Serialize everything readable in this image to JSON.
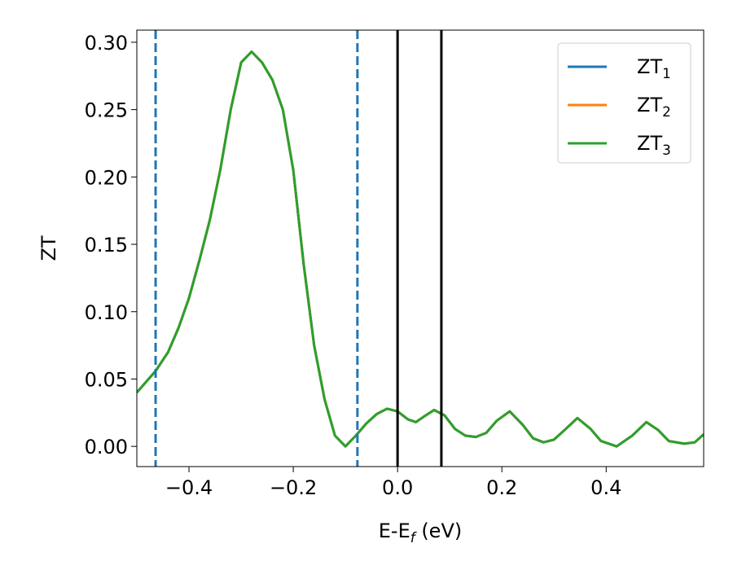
{
  "chart_data": {
    "type": "line",
    "xlabel": "E-Ef (eV)",
    "ylabel": "ZT",
    "x": [
      -0.5,
      -0.464,
      -0.44,
      -0.42,
      -0.4,
      -0.38,
      -0.36,
      -0.34,
      -0.32,
      -0.3,
      -0.28,
      -0.26,
      -0.24,
      -0.22,
      -0.2,
      -0.18,
      -0.16,
      -0.14,
      -0.12,
      -0.1,
      -0.08,
      -0.06,
      -0.04,
      -0.02,
      0.0,
      0.02,
      0.035,
      0.05,
      0.07,
      0.09,
      0.11,
      0.13,
      0.15,
      0.17,
      0.19,
      0.215,
      0.24,
      0.26,
      0.28,
      0.3,
      0.32,
      0.345,
      0.37,
      0.39,
      0.42,
      0.45,
      0.477,
      0.5,
      0.52,
      0.55,
      0.57,
      0.587
    ],
    "series": [
      {
        "name": "ZT1",
        "color": "#1f77b4",
        "values": [
          0.04,
          0.056,
          0.07,
          0.088,
          0.11,
          0.138,
          0.168,
          0.205,
          0.25,
          0.285,
          0.293,
          0.285,
          0.272,
          0.25,
          0.205,
          0.135,
          0.075,
          0.035,
          0.008,
          0.0,
          0.008,
          0.017,
          0.024,
          0.028,
          0.026,
          0.02,
          0.018,
          0.022,
          0.027,
          0.023,
          0.013,
          0.008,
          0.007,
          0.01,
          0.019,
          0.026,
          0.016,
          0.006,
          0.003,
          0.005,
          0.012,
          0.021,
          0.013,
          0.004,
          0.0,
          0.008,
          0.018,
          0.012,
          0.004,
          0.002,
          0.003,
          0.009
        ]
      },
      {
        "name": "ZT2",
        "color": "#ff7f0e",
        "values": [
          0.04,
          0.056,
          0.07,
          0.088,
          0.11,
          0.138,
          0.168,
          0.205,
          0.25,
          0.285,
          0.293,
          0.285,
          0.272,
          0.25,
          0.205,
          0.135,
          0.075,
          0.035,
          0.008,
          0.0,
          0.008,
          0.017,
          0.024,
          0.028,
          0.026,
          0.02,
          0.018,
          0.022,
          0.027,
          0.023,
          0.013,
          0.008,
          0.007,
          0.01,
          0.019,
          0.026,
          0.016,
          0.006,
          0.003,
          0.005,
          0.012,
          0.021,
          0.013,
          0.004,
          0.0,
          0.008,
          0.018,
          0.012,
          0.004,
          0.002,
          0.003,
          0.009
        ]
      },
      {
        "name": "ZT3",
        "color": "#2ca02c",
        "values": [
          0.04,
          0.056,
          0.07,
          0.088,
          0.11,
          0.138,
          0.168,
          0.205,
          0.25,
          0.285,
          0.293,
          0.285,
          0.272,
          0.25,
          0.205,
          0.135,
          0.075,
          0.035,
          0.008,
          0.0,
          0.008,
          0.017,
          0.024,
          0.028,
          0.026,
          0.02,
          0.018,
          0.022,
          0.027,
          0.023,
          0.013,
          0.008,
          0.007,
          0.01,
          0.019,
          0.026,
          0.016,
          0.006,
          0.003,
          0.005,
          0.012,
          0.021,
          0.013,
          0.004,
          0.0,
          0.008,
          0.018,
          0.012,
          0.004,
          0.002,
          0.003,
          0.009
        ]
      }
    ],
    "vlines": [
      {
        "x": -0.464,
        "color": "#1f77b4",
        "dashed": true
      },
      {
        "x": -0.077,
        "color": "#1f77b4",
        "dashed": true
      },
      {
        "x": 0.0,
        "color": "#000000",
        "dashed": false
      },
      {
        "x": 0.084,
        "color": "#000000",
        "dashed": false
      }
    ],
    "xlim": [
      -0.5,
      0.587
    ],
    "ylim": [
      -0.015,
      0.309
    ],
    "xticks": [
      {
        "value": -0.4,
        "label": "−0.4"
      },
      {
        "value": -0.2,
        "label": "−0.2"
      },
      {
        "value": 0.0,
        "label": "0.0"
      },
      0.2,
      0.4
    ],
    "yticks": [
      {
        "value": 0,
        "label": "0.00"
      },
      {
        "value": 0.05,
        "label": "0.05"
      },
      {
        "value": 0.1,
        "label": "0.10"
      },
      {
        "value": 0.15,
        "label": "0.15"
      },
      {
        "value": 0.2,
        "label": "0.20"
      },
      {
        "value": 0.25,
        "label": "0.25"
      },
      {
        "value": 0.3,
        "label": "0.30"
      }
    ],
    "legend": "upper right",
    "grid": false
  }
}
